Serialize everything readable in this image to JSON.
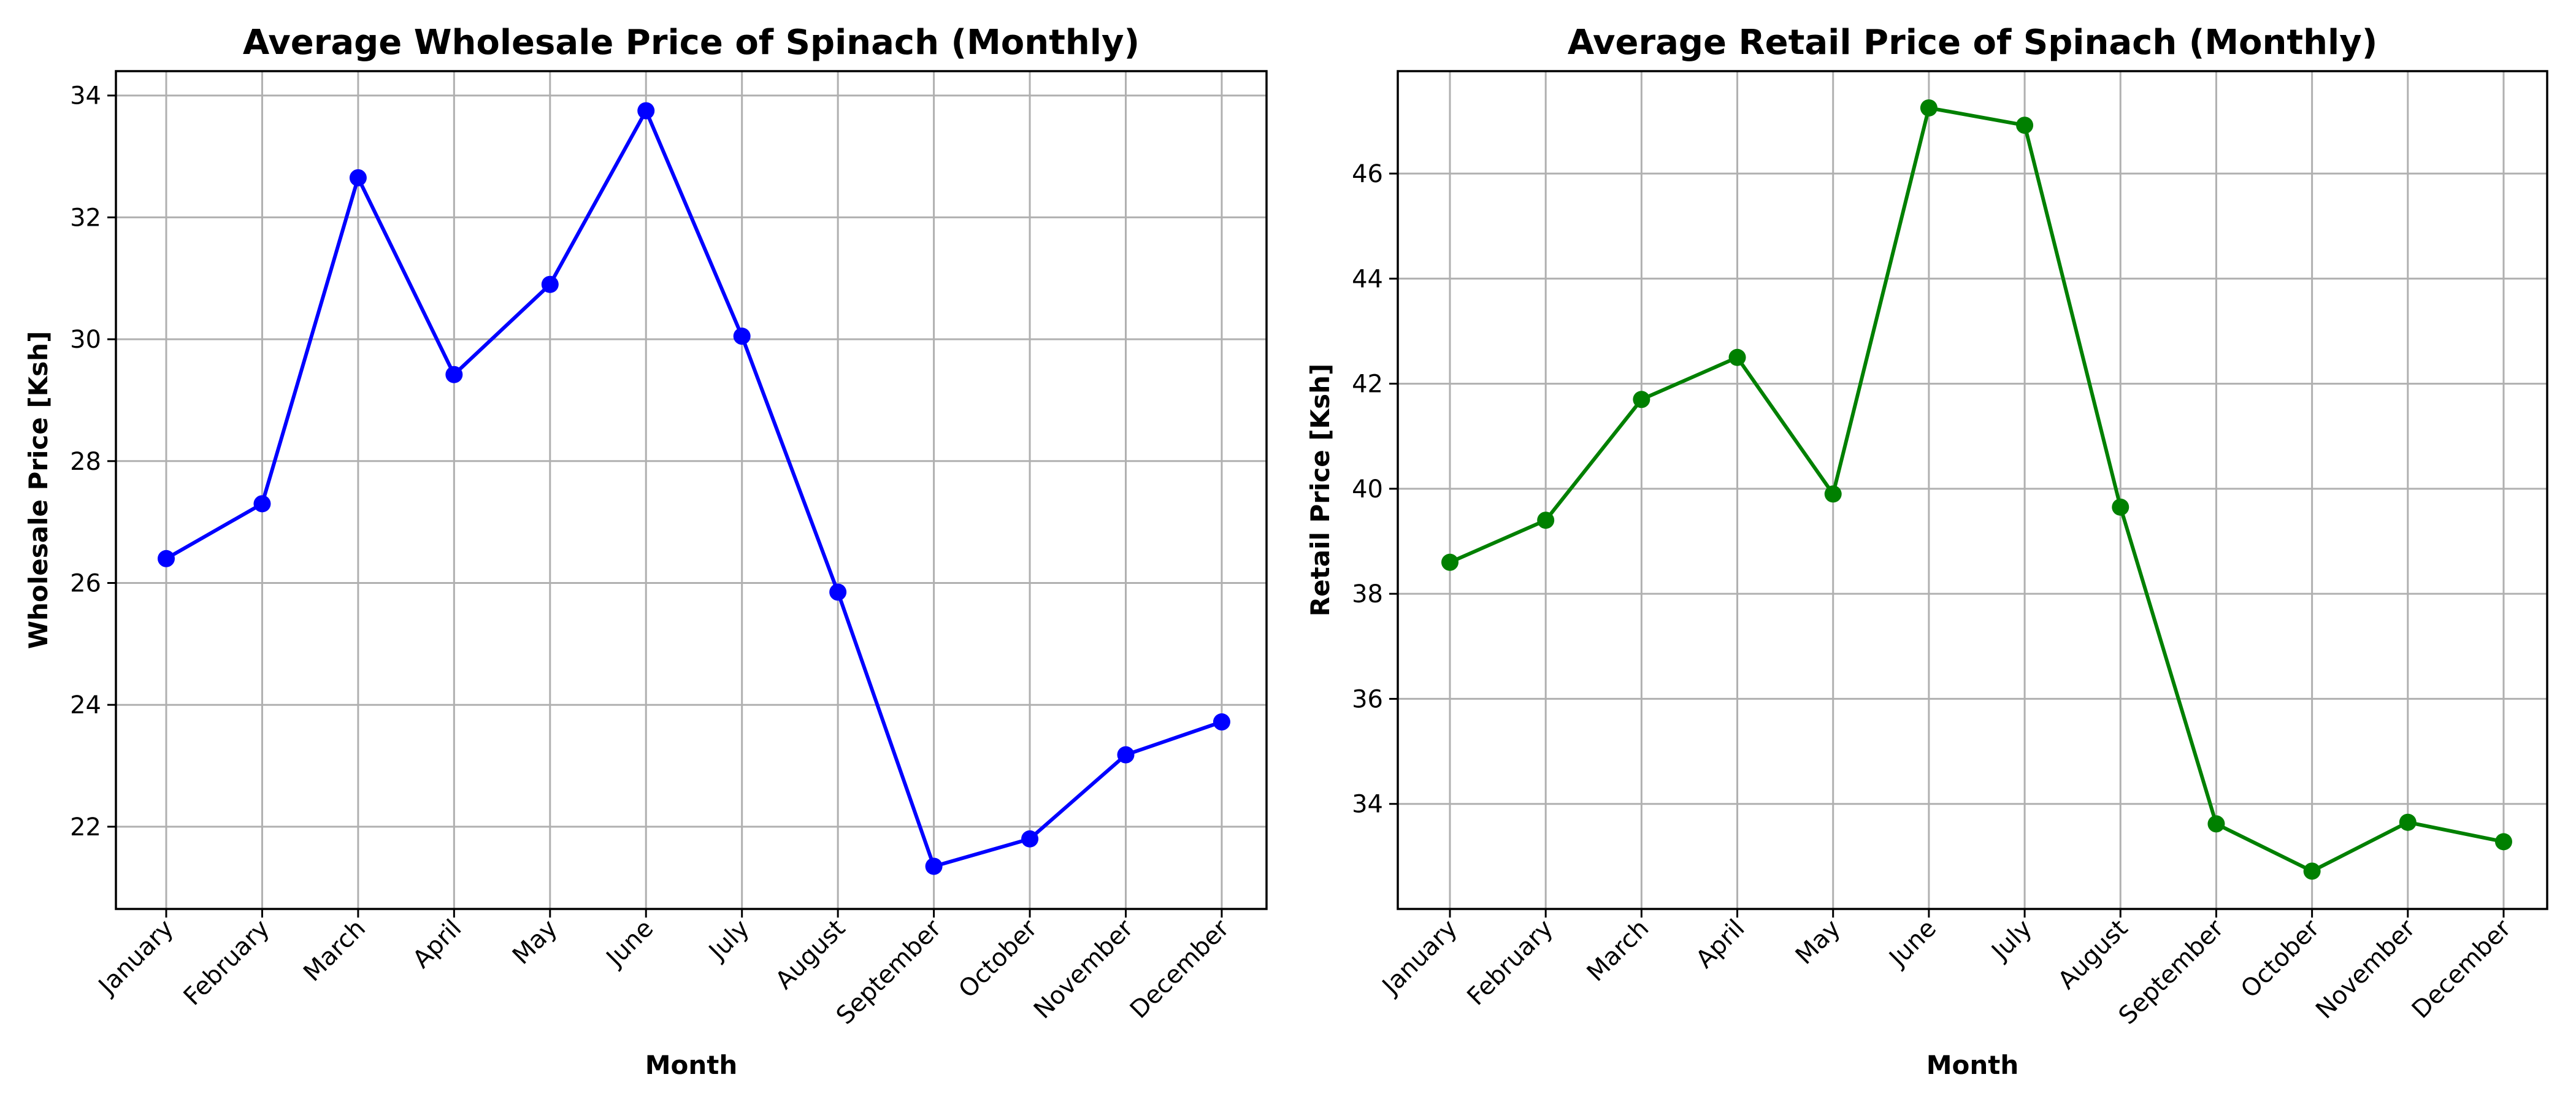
{
  "chart_data": [
    {
      "type": "line",
      "title": "Average Wholesale Price of Spinach (Monthly)",
      "xlabel": "Month",
      "ylabel": "Wholesale Price [Ksh]",
      "categories": [
        "January",
        "February",
        "March",
        "April",
        "May",
        "June",
        "July",
        "August",
        "September",
        "October",
        "November",
        "December"
      ],
      "series": [
        {
          "values": [
            26.4,
            27.3,
            32.65,
            29.42,
            30.9,
            33.75,
            30.05,
            25.85,
            21.35,
            21.8,
            23.18,
            23.72
          ],
          "color": "#0000ff"
        }
      ],
      "ylim": [
        20.65,
        34.4
      ],
      "yticks": [
        22,
        24,
        26,
        28,
        30,
        32,
        34
      ],
      "grid": true,
      "legend": "none"
    },
    {
      "type": "line",
      "title": "Average Retail Price of Spinach (Monthly)",
      "xlabel": "Month",
      "ylabel": "Retail Price [Ksh]",
      "categories": [
        "January",
        "February",
        "March",
        "April",
        "May",
        "June",
        "July",
        "August",
        "September",
        "October",
        "November",
        "December"
      ],
      "series": [
        {
          "values": [
            38.6,
            39.4,
            41.7,
            42.5,
            39.9,
            47.25,
            46.92,
            39.65,
            33.62,
            32.72,
            33.65,
            33.28
          ],
          "color": "#008000"
        }
      ],
      "ylim": [
        32.0,
        47.95
      ],
      "yticks": [
        34,
        36,
        38,
        40,
        42,
        44,
        46
      ],
      "grid": true,
      "legend": "none"
    }
  ]
}
